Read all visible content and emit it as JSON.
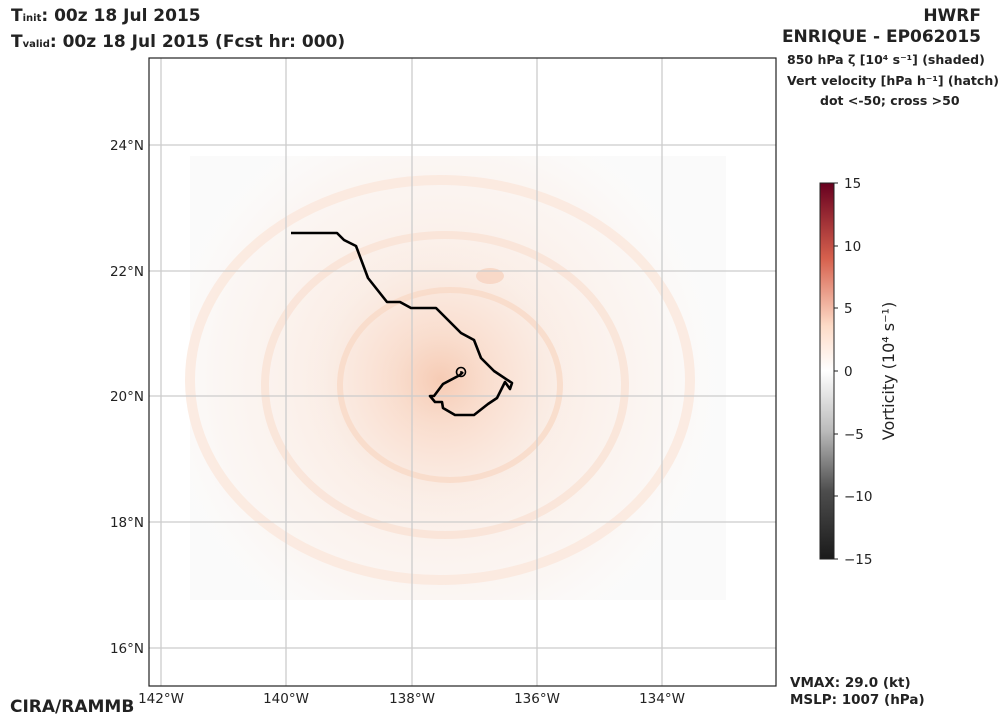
{
  "header": {
    "t_init_label": "T",
    "t_init_sub": "init",
    "t_init_value": ":  00z 18 Jul 2015",
    "t_valid_label": "T",
    "t_valid_sub": "valid",
    "t_valid_value": ": 00z 18 Jul 2015 (Fcst hr: 000)",
    "model": "HWRF",
    "storm": "ENRIQUE - EP062015",
    "field_line1": "850 hPa ζ [10⁴ s⁻¹] (shaded)",
    "field_line2": "Vert velocity [hPa h⁻¹] (hatch)",
    "field_line3": "dot <-50; cross >50"
  },
  "map": {
    "lat_labels": [
      "24°N",
      "22°N",
      "20°N",
      "18°N",
      "16°N"
    ],
    "lon_labels": [
      "142°W",
      "140°W",
      "138°W",
      "136°W",
      "134°W"
    ],
    "grid": true,
    "center_symbol": "circle-dot-icon"
  },
  "colorbar": {
    "label": "Vorticity (10⁴  s⁻¹)",
    "ticks": [
      "15",
      "10",
      "5",
      "0",
      "−5",
      "−10",
      "−15"
    ],
    "colors": {
      "top": "#67001f",
      "upper": "#d6604d",
      "mid_upper": "#fddbc7",
      "middle": "#ffffff",
      "mid_lower": "#bababa",
      "lower": "#4d4d4d",
      "bottom": "#1a1a1a"
    }
  },
  "stats": {
    "vmax": "VMAX:  29.0 (kt)",
    "mslp": "MSLP: 1007 (hPa)"
  },
  "credit": "CIRA/RAMMB"
}
